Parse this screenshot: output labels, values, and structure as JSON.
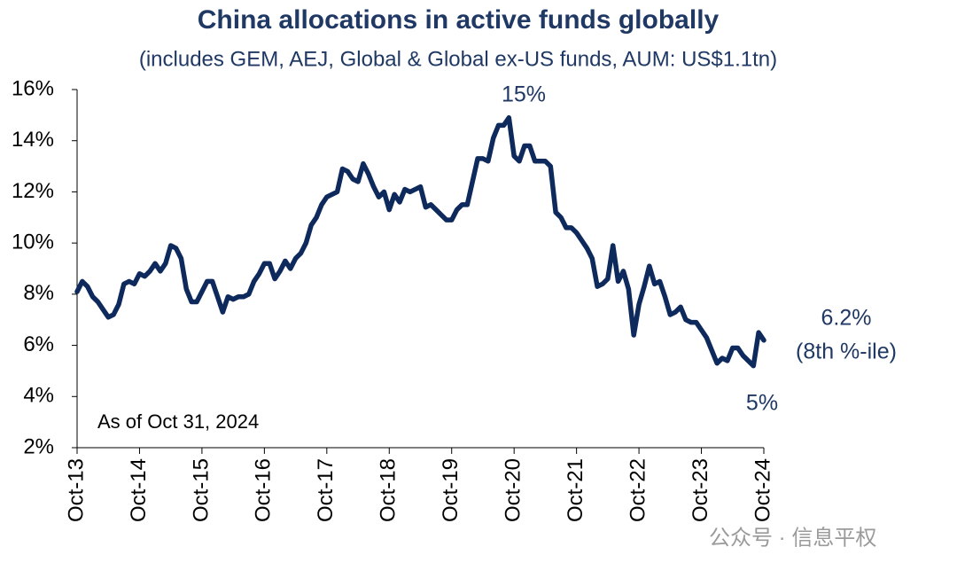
{
  "chart_data": {
    "type": "line",
    "title": "China allocations in active funds globally",
    "subtitle": "(includes GEM, AEJ, Global & Global ex-US funds, AUM: US$1.1tn)",
    "annotations": [
      "15%",
      "6.2%",
      "(8th %-ile)",
      "5%",
      "As of Oct 31, 2024"
    ],
    "watermark": "公众号 · 信息平权",
    "categories": [
      "Oct-13",
      null,
      null,
      null,
      null,
      null,
      null,
      null,
      null,
      null,
      null,
      null,
      "Oct-14",
      null,
      null,
      null,
      null,
      null,
      null,
      null,
      null,
      null,
      null,
      null,
      "Oct-15",
      null,
      null,
      null,
      null,
      null,
      null,
      null,
      null,
      null,
      null,
      null,
      "Oct-16",
      null,
      null,
      null,
      null,
      null,
      null,
      null,
      null,
      null,
      null,
      null,
      "Oct-17",
      null,
      null,
      null,
      null,
      null,
      null,
      null,
      null,
      null,
      null,
      null,
      "Oct-18",
      null,
      null,
      null,
      null,
      null,
      null,
      null,
      null,
      null,
      null,
      null,
      "Oct-19",
      null,
      null,
      null,
      null,
      null,
      null,
      null,
      null,
      null,
      null,
      null,
      "Oct-20",
      null,
      null,
      null,
      null,
      null,
      null,
      null,
      null,
      null,
      null,
      null,
      "Oct-21",
      null,
      null,
      null,
      null,
      null,
      null,
      null,
      null,
      null,
      null,
      null,
      "Oct-22",
      null,
      null,
      null,
      null,
      null,
      null,
      null,
      null,
      null,
      null,
      null,
      "Oct-23",
      null,
      null,
      null,
      null,
      null,
      null,
      null,
      null,
      null,
      null,
      null,
      "Oct-24"
    ],
    "values": [
      8.1,
      8.5,
      8.3,
      7.9,
      7.7,
      7.4,
      7.1,
      7.2,
      7.6,
      8.4,
      8.5,
      8.4,
      8.8,
      8.7,
      8.9,
      9.2,
      8.9,
      9.2,
      9.9,
      9.8,
      9.4,
      8.2,
      7.7,
      7.7,
      8.1,
      8.5,
      8.5,
      7.9,
      7.3,
      7.9,
      7.8,
      7.9,
      7.9,
      8.0,
      8.5,
      8.8,
      9.2,
      9.2,
      8.6,
      8.9,
      9.3,
      9.0,
      9.4,
      9.6,
      10.0,
      10.7,
      11.0,
      11.5,
      11.8,
      11.9,
      12.0,
      12.9,
      12.8,
      12.5,
      12.4,
      13.1,
      12.7,
      12.2,
      11.8,
      12.0,
      11.3,
      11.9,
      11.6,
      12.1,
      12.0,
      12.1,
      12.2,
      11.4,
      11.5,
      11.3,
      11.1,
      10.9,
      10.9,
      11.3,
      11.5,
      11.5,
      12.4,
      13.3,
      13.3,
      13.2,
      14.1,
      14.6,
      14.6,
      14.9,
      13.4,
      13.2,
      13.8,
      13.8,
      13.2,
      13.2,
      13.2,
      13.0,
      11.2,
      11.0,
      10.6,
      10.6,
      10.4,
      10.1,
      9.8,
      9.4,
      8.3,
      8.4,
      8.6,
      9.9,
      8.5,
      8.9,
      8.2,
      6.4,
      7.6,
      8.3,
      9.1,
      8.4,
      8.5,
      7.9,
      7.2,
      7.3,
      7.5,
      7.0,
      6.9,
      6.9,
      6.6,
      6.3,
      5.8,
      5.3,
      5.5,
      5.4,
      5.9,
      5.9,
      5.6,
      5.4,
      5.2,
      6.5,
      6.2
    ],
    "color": "#0e2a5c",
    "ylim": [
      2,
      16
    ],
    "yticks": [
      {
        "value": 2,
        "label": "2%"
      },
      {
        "value": 4,
        "label": "4%"
      },
      {
        "value": 6,
        "label": "6%"
      },
      {
        "value": 8,
        "label": "8%"
      },
      {
        "value": 10,
        "label": "10%"
      },
      {
        "value": 12,
        "label": "12%"
      },
      {
        "value": 14,
        "label": "14%"
      },
      {
        "value": 16,
        "label": "16%"
      }
    ],
    "grid": false
  }
}
